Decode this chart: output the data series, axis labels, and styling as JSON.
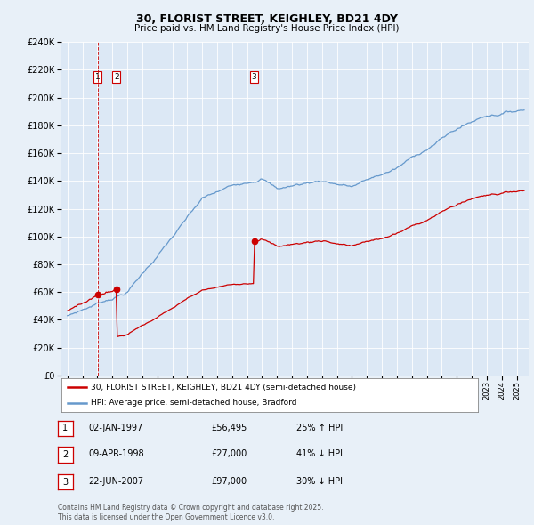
{
  "title": "30, FLORIST STREET, KEIGHLEY, BD21 4DY",
  "subtitle": "Price paid vs. HM Land Registry's House Price Index (HPI)",
  "background_color": "#e8f0f8",
  "plot_bg_color": "#dce8f5",
  "sale_color": "#cc0000",
  "hpi_color": "#6699cc",
  "transactions": [
    {
      "id": 1,
      "date_x": 1997.01,
      "price": 56495
    },
    {
      "id": 2,
      "date_x": 1998.27,
      "price": 27000
    },
    {
      "id": 3,
      "date_x": 2007.47,
      "price": 97000
    }
  ],
  "legend_label_sale": "30, FLORIST STREET, KEIGHLEY, BD21 4DY (semi-detached house)",
  "legend_label_hpi": "HPI: Average price, semi-detached house, Bradford",
  "footer_line1": "Contains HM Land Registry data © Crown copyright and database right 2025.",
  "footer_line2": "This data is licensed under the Open Government Licence v3.0.",
  "table_rows": [
    [
      1,
      "02-JAN-1997",
      "£56,495",
      "25% ↑ HPI"
    ],
    [
      2,
      "09-APR-1998",
      "£27,000",
      "41% ↓ HPI"
    ],
    [
      3,
      "22-JUN-2007",
      "£97,000",
      "30% ↓ HPI"
    ]
  ],
  "ylim": [
    0,
    240000
  ],
  "xlim_start": 1994.6,
  "xlim_end": 2025.8
}
